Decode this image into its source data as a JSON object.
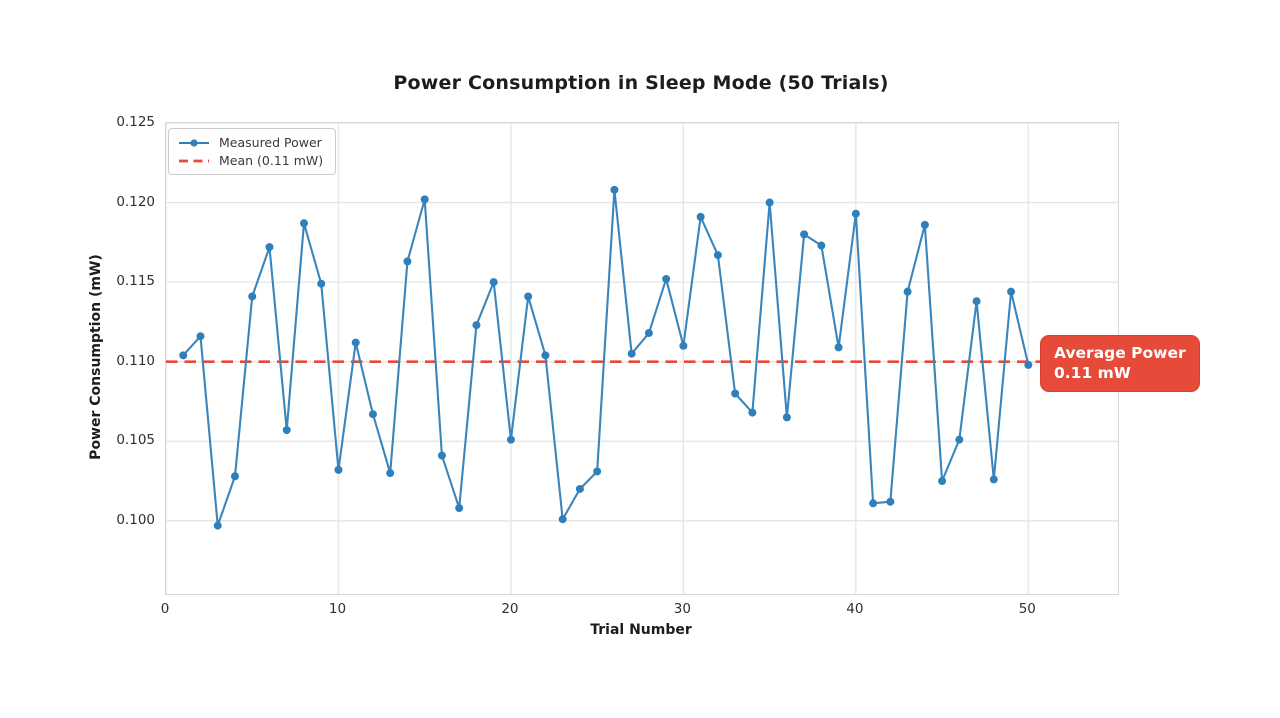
{
  "title": "Power Consumption in Sleep Mode (50 Trials)",
  "axes": {
    "xlabel": "Trial Number",
    "ylabel": "Power Consumption (mW)",
    "xtick_labels": [
      "0",
      "10",
      "20",
      "30",
      "40",
      "50"
    ],
    "ytick_labels": [
      "0.100",
      "0.105",
      "0.110",
      "0.115",
      "0.120",
      "0.125"
    ]
  },
  "legend": {
    "items": [
      {
        "label": "Measured Power",
        "type": "line-with-marker",
        "color": "#2f7fba"
      },
      {
        "label": "Mean (0.11 mW)",
        "type": "dashed-line",
        "color": "#e64a38"
      }
    ]
  },
  "annotation": {
    "line1": "Average Power",
    "line2": "0.11 mW",
    "bg_color": "#e64a38",
    "text_color": "#ffffff"
  },
  "colors": {
    "measured_line": "#3a85bc",
    "measured_marker": "#2f7fba",
    "mean_line": "#e64a38",
    "grid": "#e5e5e5",
    "spine": "#d6d6d6",
    "tick_text": "#303030",
    "title_text": "#1d1d1d"
  },
  "chart_data": {
    "type": "line",
    "title": "Power Consumption in Sleep Mode (50 Trials)",
    "xlabel": "Trial Number",
    "ylabel": "Power Consumption (mW)",
    "x": [
      1,
      2,
      3,
      4,
      5,
      6,
      7,
      8,
      9,
      10,
      11,
      12,
      13,
      14,
      15,
      16,
      17,
      18,
      19,
      20,
      21,
      22,
      23,
      24,
      25,
      26,
      27,
      28,
      29,
      30,
      31,
      32,
      33,
      34,
      35,
      36,
      37,
      38,
      39,
      40,
      41,
      42,
      43,
      44,
      45,
      46,
      47,
      48,
      49,
      50
    ],
    "series": [
      {
        "name": "Measured Power",
        "style": "solid-with-circle-markers",
        "color": "#3a85bc",
        "values": [
          0.1104,
          0.1116,
          0.0997,
          0.1028,
          0.1141,
          0.1172,
          0.1057,
          0.1187,
          0.1149,
          0.1032,
          0.1112,
          0.1067,
          0.103,
          0.1163,
          0.1202,
          0.1041,
          0.1008,
          0.1123,
          0.115,
          0.1051,
          0.1141,
          0.1104,
          0.1001,
          0.102,
          0.1031,
          0.1208,
          0.1105,
          0.1118,
          0.1152,
          0.111,
          0.1191,
          0.1167,
          0.108,
          0.1068,
          0.12,
          0.1065,
          0.118,
          0.1173,
          0.1109,
          0.1193,
          0.1011,
          0.1012,
          0.1144,
          0.1186,
          0.1025,
          0.1051,
          0.1138,
          0.1026,
          0.1144,
          0.1098
        ]
      },
      {
        "name": "Mean (0.11 mW)",
        "style": "dashed-horizontal",
        "color": "#e64a38",
        "constant": 0.11
      }
    ],
    "xlim": [
      0,
      55.2
    ],
    "ylim": [
      0.0954,
      0.125
    ],
    "xticks": [
      0,
      10,
      20,
      30,
      40,
      50
    ],
    "yticks": [
      0.1,
      0.105,
      0.11,
      0.115,
      0.12,
      0.125
    ],
    "grid": true,
    "legend_position": "upper left",
    "annotation_text": "Average Power\n0.11 mW"
  }
}
